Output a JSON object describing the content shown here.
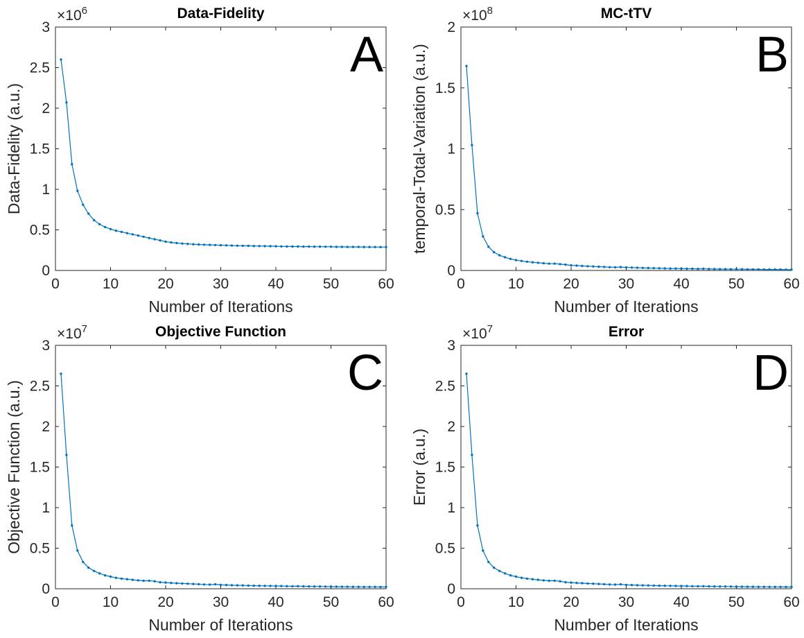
{
  "chart_data": [
    {
      "type": "line",
      "panel_letter": "A",
      "title": "Data-Fidelity",
      "xlabel": "Number of Iterations",
      "ylabel": "Data-Fidelity (a.u.)",
      "y_exponent_base": "×10",
      "y_exponent": "6",
      "xlim": [
        0,
        60
      ],
      "ylim": [
        0,
        3
      ],
      "x_ticks": [
        "0",
        "10",
        "20",
        "30",
        "40",
        "50",
        "60"
      ],
      "y_ticks": [
        "0",
        "0.5",
        "1",
        "1.5",
        "2",
        "2.5",
        "3"
      ],
      "grid": false,
      "series_color": "#0072BD",
      "x": [
        1,
        2,
        3,
        4,
        5,
        6,
        7,
        8,
        9,
        10,
        11,
        12,
        13,
        14,
        15,
        16,
        17,
        18,
        19,
        20,
        21,
        22,
        23,
        24,
        25,
        26,
        27,
        28,
        29,
        30,
        31,
        32,
        33,
        34,
        35,
        36,
        37,
        38,
        39,
        40,
        41,
        42,
        43,
        44,
        45,
        46,
        47,
        48,
        49,
        50,
        51,
        52,
        53,
        54,
        55,
        56,
        57,
        58,
        59,
        60
      ],
      "values": [
        2.6,
        2.07,
        1.31,
        0.98,
        0.81,
        0.7,
        0.62,
        0.57,
        0.535,
        0.51,
        0.49,
        0.475,
        0.46,
        0.445,
        0.43,
        0.415,
        0.4,
        0.385,
        0.37,
        0.355,
        0.345,
        0.338,
        0.332,
        0.327,
        0.323,
        0.32,
        0.317,
        0.315,
        0.313,
        0.311,
        0.309,
        0.307,
        0.305,
        0.304,
        0.303,
        0.302,
        0.301,
        0.3,
        0.299,
        0.298,
        0.297,
        0.296,
        0.295,
        0.295,
        0.294,
        0.294,
        0.293,
        0.293,
        0.292,
        0.292,
        0.291,
        0.291,
        0.29,
        0.29,
        0.29,
        0.289,
        0.289,
        0.289,
        0.288,
        0.288
      ]
    },
    {
      "type": "line",
      "panel_letter": "B",
      "title": "MC-tTV",
      "xlabel": "Number of Iterations",
      "ylabel": "temporal-Total-Variation (a.u.)",
      "y_exponent_base": "×10",
      "y_exponent": "8",
      "xlim": [
        0,
        60
      ],
      "ylim": [
        0,
        2
      ],
      "x_ticks": [
        "0",
        "10",
        "20",
        "30",
        "40",
        "50",
        "60"
      ],
      "y_ticks": [
        "0",
        "0.5",
        "1",
        "1.5",
        "2"
      ],
      "grid": false,
      "series_color": "#0072BD",
      "x": [
        1,
        2,
        3,
        4,
        5,
        6,
        7,
        8,
        9,
        10,
        11,
        12,
        13,
        14,
        15,
        16,
        17,
        18,
        19,
        20,
        21,
        22,
        23,
        24,
        25,
        26,
        27,
        28,
        29,
        30,
        31,
        32,
        33,
        34,
        35,
        36,
        37,
        38,
        39,
        40,
        41,
        42,
        43,
        44,
        45,
        46,
        47,
        48,
        49,
        50,
        51,
        52,
        53,
        54,
        55,
        56,
        57,
        58,
        59,
        60
      ],
      "values": [
        1.68,
        1.03,
        0.47,
        0.28,
        0.195,
        0.15,
        0.125,
        0.108,
        0.095,
        0.085,
        0.078,
        0.072,
        0.067,
        0.063,
        0.059,
        0.056,
        0.056,
        0.052,
        0.048,
        0.042,
        0.04,
        0.037,
        0.035,
        0.033,
        0.031,
        0.029,
        0.027,
        0.026,
        0.028,
        0.025,
        0.024,
        0.022,
        0.021,
        0.02,
        0.019,
        0.018,
        0.017,
        0.016,
        0.016,
        0.015,
        0.014,
        0.014,
        0.013,
        0.014,
        0.012,
        0.012,
        0.011,
        0.011,
        0.01,
        0.01,
        0.01,
        0.009,
        0.009,
        0.009,
        0.008,
        0.008,
        0.008,
        0.008,
        0.007,
        0.007
      ]
    },
    {
      "type": "line",
      "panel_letter": "C",
      "title": "Objective Function",
      "xlabel": "Number of Iterations",
      "ylabel": "Objective Function (a.u.)",
      "y_exponent_base": "×10",
      "y_exponent": "7",
      "xlim": [
        0,
        60
      ],
      "ylim": [
        0,
        3
      ],
      "x_ticks": [
        "0",
        "10",
        "20",
        "30",
        "40",
        "50",
        "60"
      ],
      "y_ticks": [
        "0",
        "0.5",
        "1",
        "1.5",
        "2",
        "2.5",
        "3"
      ],
      "grid": false,
      "series_color": "#0072BD",
      "x": [
        1,
        2,
        3,
        4,
        5,
        6,
        7,
        8,
        9,
        10,
        11,
        12,
        13,
        14,
        15,
        16,
        17,
        18,
        19,
        20,
        21,
        22,
        23,
        24,
        25,
        26,
        27,
        28,
        29,
        30,
        31,
        32,
        33,
        34,
        35,
        36,
        37,
        38,
        39,
        40,
        41,
        42,
        43,
        44,
        45,
        46,
        47,
        48,
        49,
        50,
        51,
        52,
        53,
        54,
        55,
        56,
        57,
        58,
        59,
        60
      ],
      "values": [
        2.65,
        1.65,
        0.78,
        0.47,
        0.33,
        0.26,
        0.22,
        0.19,
        0.165,
        0.15,
        0.135,
        0.125,
        0.118,
        0.11,
        0.103,
        0.098,
        0.099,
        0.092,
        0.08,
        0.076,
        0.072,
        0.068,
        0.065,
        0.062,
        0.059,
        0.056,
        0.053,
        0.051,
        0.055,
        0.048,
        0.046,
        0.044,
        0.042,
        0.041,
        0.039,
        0.038,
        0.037,
        0.036,
        0.035,
        0.034,
        0.033,
        0.032,
        0.031,
        0.032,
        0.03,
        0.029,
        0.028,
        0.028,
        0.027,
        0.026,
        0.026,
        0.025,
        0.025,
        0.024,
        0.024,
        0.023,
        0.023,
        0.023,
        0.022,
        0.022
      ]
    },
    {
      "type": "line",
      "panel_letter": "D",
      "title": "Error",
      "xlabel": "Number of Iterations",
      "ylabel": "Error (a.u.)",
      "y_exponent_base": "×10",
      "y_exponent": "7",
      "xlim": [
        0,
        60
      ],
      "ylim": [
        0,
        3
      ],
      "x_ticks": [
        "0",
        "10",
        "20",
        "30",
        "40",
        "50",
        "60"
      ],
      "y_ticks": [
        "0",
        "0.5",
        "1",
        "1.5",
        "2",
        "2.5",
        "3"
      ],
      "grid": false,
      "series_color": "#0072BD",
      "x": [
        1,
        2,
        3,
        4,
        5,
        6,
        7,
        8,
        9,
        10,
        11,
        12,
        13,
        14,
        15,
        16,
        17,
        18,
        19,
        20,
        21,
        22,
        23,
        24,
        25,
        26,
        27,
        28,
        29,
        30,
        31,
        32,
        33,
        34,
        35,
        36,
        37,
        38,
        39,
        40,
        41,
        42,
        43,
        44,
        45,
        46,
        47,
        48,
        49,
        50,
        51,
        52,
        53,
        54,
        55,
        56,
        57,
        58,
        59,
        60
      ],
      "values": [
        2.65,
        1.65,
        0.78,
        0.47,
        0.33,
        0.26,
        0.22,
        0.19,
        0.165,
        0.15,
        0.135,
        0.125,
        0.118,
        0.11,
        0.103,
        0.098,
        0.099,
        0.092,
        0.08,
        0.076,
        0.072,
        0.068,
        0.065,
        0.062,
        0.059,
        0.056,
        0.053,
        0.051,
        0.055,
        0.048,
        0.046,
        0.044,
        0.042,
        0.041,
        0.039,
        0.038,
        0.037,
        0.036,
        0.035,
        0.034,
        0.033,
        0.032,
        0.031,
        0.032,
        0.03,
        0.029,
        0.028,
        0.028,
        0.027,
        0.026,
        0.026,
        0.025,
        0.025,
        0.024,
        0.024,
        0.023,
        0.023,
        0.023,
        0.022,
        0.022
      ]
    }
  ]
}
